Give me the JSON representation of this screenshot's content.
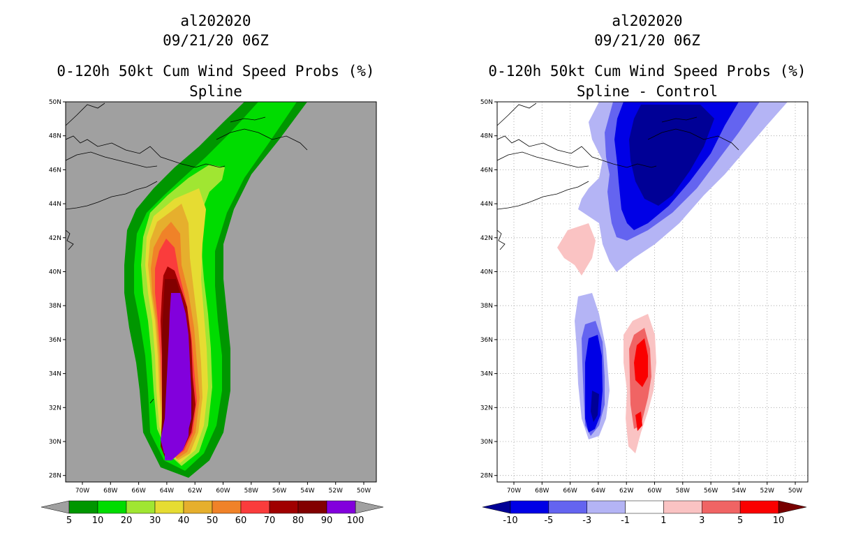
{
  "left": {
    "storm_id": "al202020",
    "datetime": "09/21/20 06Z",
    "title": "0-120h 50kt Cum Wind Speed Probs (%)",
    "subtitle": "Spline",
    "lat_labels": [
      "50N",
      "48N",
      "46N",
      "44N",
      "42N",
      "40N",
      "38N",
      "36N",
      "34N",
      "32N",
      "30N",
      "28N"
    ],
    "lon_labels": [
      "70W",
      "68W",
      "66W",
      "64W",
      "62W",
      "60W",
      "58W",
      "56W",
      "54W",
      "52W",
      "50W"
    ],
    "colorbar": {
      "labels": [
        "5",
        "10",
        "20",
        "30",
        "40",
        "50",
        "60",
        "70",
        "80",
        "90",
        "100"
      ],
      "colors": [
        "#009600",
        "#00dc00",
        "#a0e632",
        "#e6dc32",
        "#e6af2d",
        "#f08228",
        "#fa3c3c",
        "#a00000",
        "#820000",
        "#8200dc"
      ],
      "under_color": "#a0a0a0",
      "over_color": "#a0a0a0"
    },
    "background_color": "#a0a0a0"
  },
  "right": {
    "storm_id": "al202020",
    "datetime": "09/21/20 06Z",
    "title": "0-120h 50kt Cum Wind Speed Probs (%)",
    "subtitle": "Spline - Control",
    "lat_labels": [
      "50N",
      "48N",
      "46N",
      "44N",
      "42N",
      "40N",
      "38N",
      "36N",
      "34N",
      "32N",
      "30N",
      "28N"
    ],
    "lon_labels": [
      "70W",
      "68W",
      "66W",
      "64W",
      "62W",
      "60W",
      "58W",
      "56W",
      "54W",
      "52W",
      "50W"
    ],
    "colorbar": {
      "labels": [
        "-10",
        "-5",
        "-3",
        "-1",
        "1",
        "3",
        "5",
        "10"
      ],
      "colors": [
        "#0000e6",
        "#6464f0",
        "#b4b4f5",
        "#ffffff",
        "#fac3c3",
        "#f06464",
        "#fa0000"
      ],
      "under_color": "#000096",
      "over_color": "#780000"
    },
    "background_color": "#ffffff"
  }
}
